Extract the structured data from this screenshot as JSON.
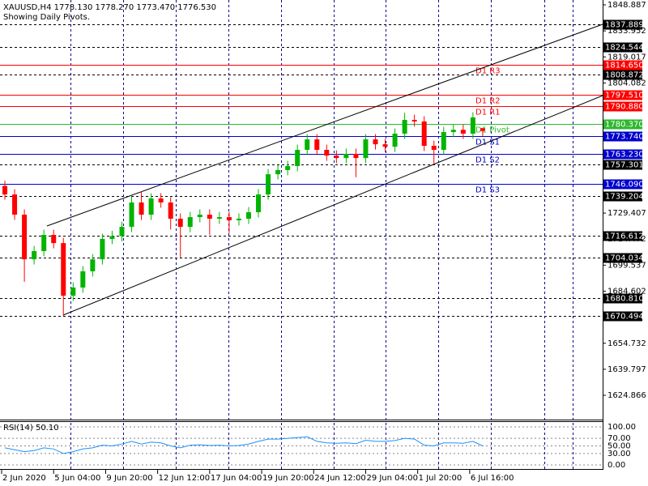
{
  "chart_data": {
    "type": "candlestick",
    "title": "XAUUSD,H4  1778.130 1778.270 1773.470 1776.530",
    "subtitle": "Showing Daily Pivots.",
    "up_color": "#00b400",
    "down_color": "#ff0000",
    "x": [
      1,
      4,
      7,
      10,
      13,
      16,
      19,
      22,
      25,
      28,
      31,
      34,
      37,
      40,
      43,
      46,
      49,
      52,
      55,
      58,
      61,
      64,
      67,
      70,
      73,
      76,
      79,
      82,
      85,
      88,
      91,
      94,
      97,
      100,
      103,
      106,
      109,
      112,
      115,
      118,
      121,
      124,
      127,
      130,
      133,
      136,
      139,
      142,
      145,
      148
    ],
    "open": [
      1745.0,
      1740.1,
      1728.5,
      1702.9,
      1707.6,
      1716.9,
      1712.2,
      1682.0,
      1686.7,
      1696.0,
      1702.9,
      1714.6,
      1716.2,
      1721.5,
      1735.5,
      1728.5,
      1737.8,
      1735.5,
      1726.2,
      1721.5,
      1727.1,
      1728.5,
      1726.2,
      1727.1,
      1725.3,
      1726.2,
      1729.9,
      1740.1,
      1751.7,
      1754.1,
      1756.4,
      1765.7,
      1771.7,
      1765.7,
      1762.4,
      1761.0,
      1763.4,
      1761.0,
      1771.7,
      1768.9,
      1767.5,
      1775.0,
      1782.9,
      1782.0,
      1768.0,
      1765.7,
      1775.9,
      1777.2,
      1775.0,
      1778.13
    ],
    "high": [
      1748.0,
      1743.1,
      1731.5,
      1710.6,
      1719.9,
      1719.9,
      1715.2,
      1689.7,
      1699.0,
      1705.9,
      1717.6,
      1719.2,
      1724.5,
      1739.0,
      1742.0,
      1740.8,
      1740.8,
      1738.5,
      1729.2,
      1730.1,
      1731.5,
      1731.5,
      1730.1,
      1730.1,
      1729.2,
      1732.9,
      1743.1,
      1754.7,
      1757.1,
      1759.4,
      1768.7,
      1774.7,
      1774.7,
      1768.7,
      1765.4,
      1766.4,
      1766.4,
      1774.7,
      1774.7,
      1771.9,
      1778.0,
      1787.0,
      1785.9,
      1785.0,
      1771.0,
      1778.9,
      1780.2,
      1780.2,
      1787.3,
      1778.27
    ],
    "low": [
      1737.1,
      1725.5,
      1690.0,
      1699.9,
      1704.6,
      1709.2,
      1670.5,
      1679.0,
      1683.7,
      1693.0,
      1699.9,
      1711.6,
      1713.2,
      1718.5,
      1725.5,
      1725.5,
      1732.5,
      1720.0,
      1704.0,
      1718.5,
      1724.1,
      1717.0,
      1723.2,
      1718.0,
      1722.3,
      1723.2,
      1726.9,
      1737.1,
      1748.7,
      1751.1,
      1753.4,
      1762.7,
      1762.7,
      1759.4,
      1758.0,
      1758.0,
      1750.0,
      1758.0,
      1765.9,
      1764.5,
      1764.5,
      1772.0,
      1779.0,
      1765.0,
      1757.5,
      1762.7,
      1772.9,
      1772.0,
      1772.0,
      1773.47
    ],
    "close": [
      1740.1,
      1728.5,
      1702.9,
      1707.6,
      1716.9,
      1712.2,
      1682.0,
      1686.7,
      1696.0,
      1702.9,
      1714.6,
      1716.2,
      1721.5,
      1735.5,
      1728.5,
      1737.8,
      1735.5,
      1726.2,
      1721.5,
      1727.1,
      1728.5,
      1726.2,
      1727.1,
      1725.3,
      1726.2,
      1729.9,
      1740.1,
      1751.7,
      1754.1,
      1756.4,
      1765.7,
      1771.7,
      1765.7,
      1762.4,
      1761.0,
      1763.4,
      1761.0,
      1771.7,
      1768.9,
      1767.5,
      1775.0,
      1782.9,
      1782.0,
      1768.0,
      1765.7,
      1775.9,
      1777.2,
      1775.0,
      1784.3,
      1776.53
    ],
    "xlim": [
      -0.5,
      184.9
    ],
    "ylim": [
      1610.93,
      1851.68
    ],
    "yticks": [
      1848.887,
      1833.952,
      1819.017,
      1804.082,
      1729.407,
      1714.472,
      1699.537,
      1684.602,
      1654.732,
      1639.797,
      1624.866
    ],
    "xticks": [
      {
        "value": 0,
        "label": "2 Jun 2020"
      },
      {
        "value": 16,
        "label": "5 Jun 04:00"
      },
      {
        "value": 32,
        "label": "9 Jun 20:00"
      },
      {
        "value": 48,
        "label": "12 Jun 12:00"
      },
      {
        "value": 64,
        "label": "17 Jun 04:00"
      },
      {
        "value": 80,
        "label": "19 Jun 20:00"
      },
      {
        "value": 96,
        "label": "24 Jun 12:00"
      },
      {
        "value": 112,
        "label": "29 Jun 04:00"
      },
      {
        "value": 128,
        "label": "1 Jul 20:00"
      },
      {
        "value": 144,
        "label": "6 Jul 16:00"
      }
    ],
    "pivots": [
      {
        "name": "D1 R3",
        "value": 1814.65,
        "value_label": "1814.650",
        "color": "#ff0000"
      },
      {
        "name": "D1 R2",
        "value": 1797.51,
        "value_label": "1797.510",
        "color": "#ff0000"
      },
      {
        "name": "D1 R1",
        "value": 1790.88,
        "value_label": "1790.880",
        "color": "#ff0000"
      },
      {
        "name": "D1 Pivot",
        "value": 1780.37,
        "value_label": "1780.370",
        "color": "#2eb82e"
      },
      {
        "name": "D1 S1",
        "value": 1773.74,
        "value_label": "1773.740",
        "color": "#0000cc"
      },
      {
        "name": "D1 S2",
        "value": 1763.23,
        "value_label": "1763.230",
        "color": "#0000cc"
      },
      {
        "name": "D1 S3",
        "value": 1746.09,
        "value_label": "1746.090",
        "color": "#0000cc"
      }
    ],
    "levels": [
      1837.889,
      1824.544,
      1808.872,
      1757.301,
      1739.204,
      1716.612,
      1704.034,
      {
        "value": 1680.81,
        "label": "1680.810"
      },
      1670.494
    ],
    "rsi": {
      "label": "RSI(14) 50.10",
      "color": "#1e90ff",
      "values": [
        45,
        40,
        35,
        38,
        45,
        42,
        30,
        35,
        42,
        45,
        52,
        50,
        55,
        62,
        55,
        60,
        58,
        50,
        45,
        52,
        53,
        51,
        52,
        50,
        51,
        55,
        62,
        68,
        68,
        70,
        72,
        74,
        62,
        58,
        57,
        58,
        56,
        65,
        62,
        62,
        64,
        70,
        68,
        52,
        50,
        58,
        58,
        57,
        62,
        50.1
      ],
      "ylim": [
        -10.6,
        112.8
      ],
      "yticks": [
        {
          "value": 100,
          "label": "100.00"
        },
        {
          "value": 70,
          "label": "70.00"
        },
        {
          "value": 50,
          "label": "50.00"
        },
        {
          "value": 30,
          "label": "30.00"
        },
        {
          "value": 0,
          "label": "0.00"
        }
      ]
    }
  }
}
